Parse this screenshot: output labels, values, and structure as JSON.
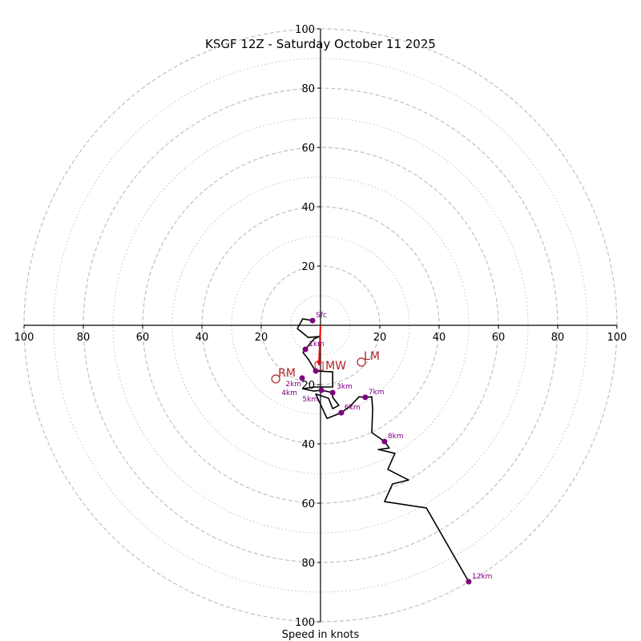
{
  "chart_data": {
    "type": "hodograph",
    "title": "KSGF 12Z - Saturday October 11 2025",
    "xlabel": "Speed in knots",
    "ring_max": 100,
    "major_rings": [
      20,
      40,
      60,
      80,
      100
    ],
    "minor_rings": [
      10,
      30,
      50,
      70,
      90
    ],
    "tick_labels": {
      "top": [
        "20",
        "40",
        "60",
        "80",
        "100"
      ],
      "bottom": [
        "20",
        "40",
        "60",
        "80",
        "100"
      ],
      "left": [
        "20",
        "40",
        "60",
        "80",
        "100"
      ],
      "right": [
        "20",
        "40",
        "60",
        "80",
        "100"
      ]
    },
    "trace": [
      [
        -2.7,
        1.6
      ],
      [
        -6.0,
        2.2
      ],
      [
        -7.8,
        -1.1
      ],
      [
        -4.1,
        -4.1
      ],
      [
        -0.5,
        -3.8
      ],
      [
        -2.2,
        -4.6
      ],
      [
        -5.1,
        -8.1
      ],
      [
        -5.9,
        -9.2
      ],
      [
        -4.1,
        -11.4
      ],
      [
        -2.2,
        -14.6
      ],
      [
        -1.6,
        -15.4
      ],
      [
        4.1,
        -15.7
      ],
      [
        4.1,
        -20.8
      ],
      [
        -1.9,
        -20.8
      ],
      [
        -6.0,
        -21.4
      ],
      [
        -2.2,
        -22.2
      ],
      [
        0.3,
        -21.9
      ],
      [
        4.1,
        -22.7
      ],
      [
        4.1,
        -24.3
      ],
      [
        6.2,
        -27.0
      ],
      [
        4.1,
        -28.1
      ],
      [
        2.7,
        -24.6
      ],
      [
        -1.6,
        -23.2
      ],
      [
        2.2,
        -31.4
      ],
      [
        7.0,
        -29.5
      ],
      [
        10.3,
        -27.0
      ],
      [
        13.0,
        -24.1
      ],
      [
        15.1,
        -24.3
      ],
      [
        17.3,
        -24.1
      ],
      [
        17.6,
        -28.4
      ],
      [
        17.3,
        -36.2
      ],
      [
        21.6,
        -39.2
      ],
      [
        23.2,
        -41.4
      ],
      [
        19.5,
        -41.9
      ],
      [
        25.1,
        -43.2
      ],
      [
        22.7,
        -48.6
      ],
      [
        29.7,
        -52.2
      ],
      [
        24.3,
        -53.5
      ],
      [
        21.6,
        -59.5
      ],
      [
        35.7,
        -61.6
      ],
      [
        50.0,
        -86.5
      ]
    ],
    "height_labels": [
      {
        "label": "Sfc",
        "u": -2.7,
        "v": 1.6
      },
      {
        "label": "1km",
        "u": -5.1,
        "v": -8.1
      },
      {
        "label": "2km",
        "u": -1.6,
        "v": -15.4
      },
      {
        "label": "3km",
        "u": 4.1,
        "v": -22.7
      },
      {
        "label": "4km",
        "u": -6.2,
        "v": -17.8
      },
      {
        "label": "5km",
        "u": 0.3,
        "v": -21.9
      },
      {
        "label": "6km",
        "u": 7.0,
        "v": -29.5
      },
      {
        "label": "7km",
        "u": 15.1,
        "v": -24.3
      },
      {
        "label": "8km",
        "u": 21.6,
        "v": -39.2
      },
      {
        "label": "12km",
        "u": 50.0,
        "v": -86.5
      }
    ],
    "storm_motion": {
      "MW": {
        "label": "MW",
        "u": -0.5,
        "v": -13.8
      },
      "LM": {
        "label": "LM",
        "u": 13.8,
        "v": -12.4
      },
      "RM": {
        "label": "RM",
        "u": -15.1,
        "v": -18.1
      }
    },
    "colors": {
      "trace": "#000000",
      "height_marker": "#800080",
      "storm_motion": "#b22222",
      "mw_arrow": "#ff0000",
      "ring": "#c0c0c0"
    }
  }
}
